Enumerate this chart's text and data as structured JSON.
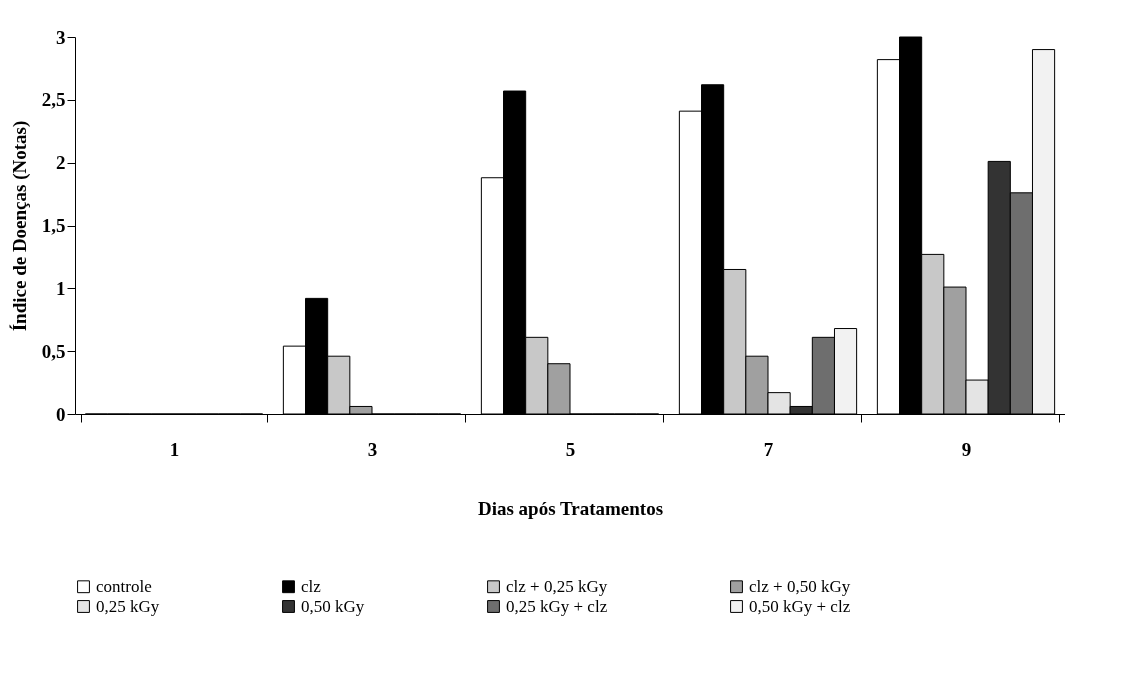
{
  "chart_data": {
    "type": "bar",
    "xlabel": "Dias após Tratamentos",
    "ylabel": "Índice de Doenças (Notas)",
    "categories": [
      "1",
      "3",
      "5",
      "7",
      "9"
    ],
    "series": [
      {
        "name": "controle",
        "color": "#ffffff",
        "values": [
          0,
          0.54,
          1.88,
          2.41,
          2.82
        ]
      },
      {
        "name": "clz",
        "color": "#000000",
        "values": [
          0,
          0.92,
          2.57,
          2.62,
          3.0
        ]
      },
      {
        "name": "clz + 0,25 kGy",
        "color": "#c8c8c8",
        "values": [
          0,
          0.46,
          0.61,
          1.15,
          1.27
        ]
      },
      {
        "name": "clz + 0,50 kGy",
        "color": "#a0a0a0",
        "values": [
          0,
          0.06,
          0.4,
          0.46,
          1.01
        ]
      },
      {
        "name": "0,25 kGy",
        "color": "#e4e4e4",
        "values": [
          0,
          0,
          0,
          0.17,
          0.27
        ]
      },
      {
        "name": "0,50 kGy",
        "color": "#333333",
        "values": [
          0,
          0,
          0,
          0.06,
          2.01
        ]
      },
      {
        "name": "0,25 kGy + clz",
        "color": "#6e6e6e",
        "values": [
          0,
          0,
          0,
          0.61,
          1.76
        ]
      },
      {
        "name": "0,50 kGy + clz",
        "color": "#f2f2f2",
        "values": [
          0,
          0,
          0,
          0.68,
          2.9
        ]
      }
    ],
    "ylim": [
      0,
      3
    ],
    "yticks": [
      0,
      {
        "value": 0.5,
        "label": "0,5"
      },
      1,
      {
        "value": 1.5,
        "label": "1,5"
      },
      2,
      {
        "value": 2.5,
        "label": "2,5"
      },
      3
    ],
    "grid": false,
    "legend": "bottom"
  }
}
